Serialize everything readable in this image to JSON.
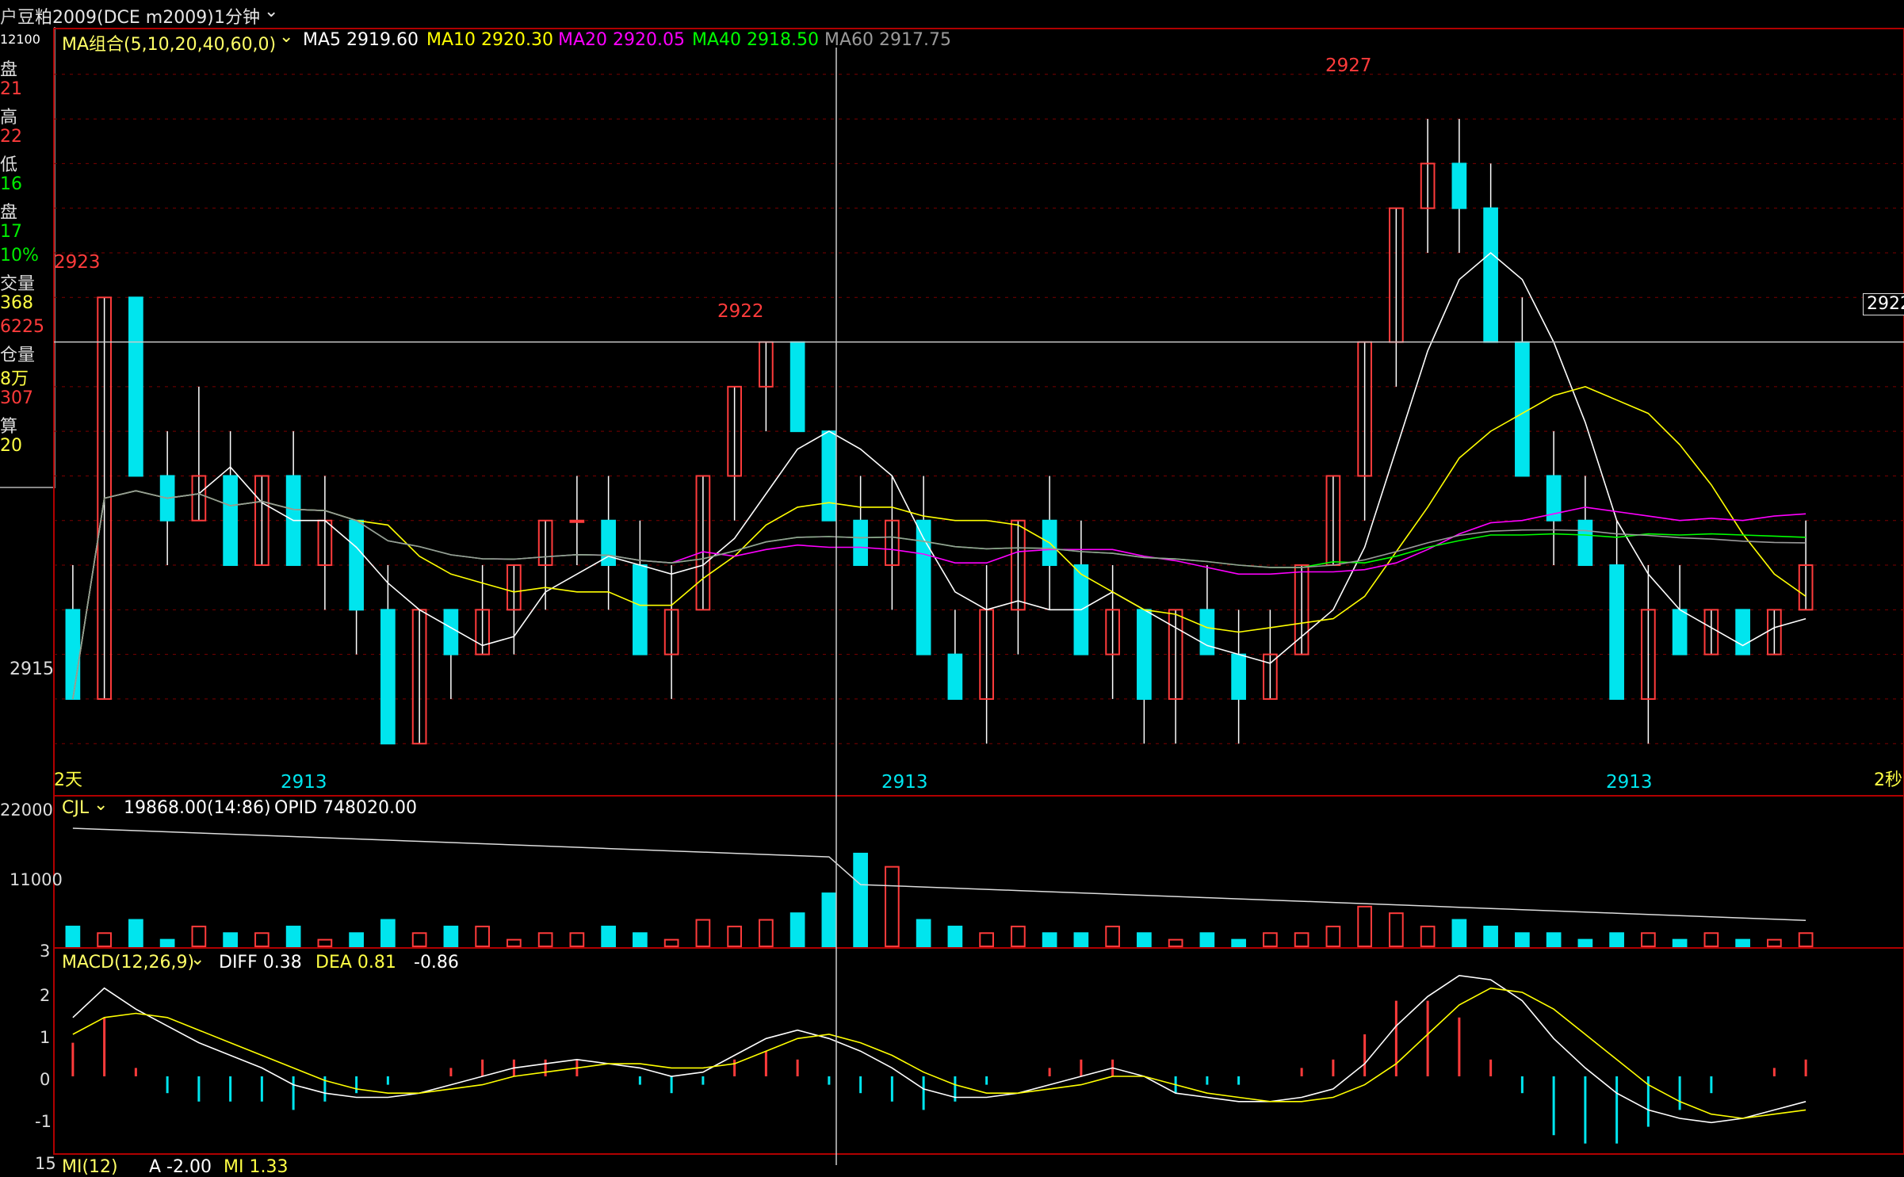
{
  "title_bar": {
    "instrument": "豆粕2009(DCE m2009)",
    "period": "1分钟",
    "dropdown_icon": "chevron-down-icon"
  },
  "left_panel": [
    {
      "text": "12100",
      "color": "#ffffff"
    },
    {
      "text": "盘",
      "color": "#dddddd"
    },
    {
      "text": "21",
      "color": "#ff3b3b"
    },
    {
      "text": "高",
      "color": "#dddddd"
    },
    {
      "text": "22",
      "color": "#ff3b3b"
    },
    {
      "text": "低",
      "color": "#dddddd"
    },
    {
      "text": "16",
      "color": "#00ee00"
    },
    {
      "text": "盘",
      "color": "#dddddd"
    },
    {
      "text": "17",
      "color": "#00ee00"
    },
    {
      "text": "10%",
      "color": "#00ee00"
    },
    {
      "text": "交量",
      "color": "#dddddd"
    },
    {
      "text": "368",
      "color": "#ffff44"
    },
    {
      "text": "6225",
      "color": "#ff3b3b"
    },
    {
      "text": "仓量",
      "color": "#dddddd"
    },
    {
      "text": "8万",
      "color": "#ffff44"
    },
    {
      "text": "307",
      "color": "#ff3b3b"
    },
    {
      "text": "算",
      "color": "#dddddd"
    },
    {
      "text": "20",
      "color": "#ffff44"
    }
  ],
  "ma_legend": {
    "name": "MA组合(5,10,20,40,60,0)",
    "items": [
      {
        "label": "MA5 2919.60",
        "color": "#ffffff"
      },
      {
        "label": "MA10 2920.30",
        "color": "#ffff00"
      },
      {
        "label": "MA20 2920.05",
        "color": "#ff00ff"
      },
      {
        "label": "MA40 2918.50",
        "color": "#00ff00"
      },
      {
        "label": "MA60 2917.75",
        "color": "#9a9a9a"
      }
    ]
  },
  "price_labels": {
    "right_cursor_price": "2922",
    "axis_2915": "2915",
    "marker_2923": "2923",
    "marker_2922": "2922",
    "marker_2927": "2927",
    "low_markers": [
      "2913",
      "2913",
      "2913"
    ],
    "left_corner": "2天",
    "right_corner": "2秒"
  },
  "volume_panel": {
    "name": "CJL",
    "value": "19868.00(14:86)",
    "opid": "OPID 748020.00",
    "axis": [
      "22000",
      "11000",
      "3"
    ]
  },
  "macd_panel": {
    "name": "MACD(12,26,9)",
    "diff": "DIFF 0.38",
    "dea": "DEA 0.81",
    "macd": "-0.86",
    "axis": [
      "2",
      "1",
      "0",
      "-1"
    ]
  },
  "bottom_panel": {
    "axis_top": "15",
    "name": "MI(12)",
    "a": "A -2.00",
    "mi": "MI 1.33"
  },
  "colors": {
    "up": "#ff3b3b",
    "down": "#00e5ee",
    "panel_border": "#b00000",
    "grid": "#7a0000"
  },
  "chart_data": {
    "type": "candlestick",
    "price_range": [
      2912.4,
      2928.6
    ],
    "candles_ohlc": [
      [
        2916,
        2917,
        2914,
        2914
      ],
      [
        2914,
        2923,
        2914,
        2923
      ],
      [
        2923,
        2923,
        2919,
        2919
      ],
      [
        2919,
        2920,
        2917,
        2918
      ],
      [
        2918,
        2921,
        2918,
        2919
      ],
      [
        2919,
        2920,
        2917,
        2917
      ],
      [
        2917,
        2919,
        2917,
        2919
      ],
      [
        2919,
        2920,
        2917,
        2917
      ],
      [
        2917,
        2919,
        2916,
        2918
      ],
      [
        2918,
        2918,
        2915,
        2916
      ],
      [
        2916,
        2917,
        2913,
        2913
      ],
      [
        2913,
        2916,
        2913,
        2916
      ],
      [
        2916,
        2916,
        2914,
        2915
      ],
      [
        2915,
        2917,
        2915,
        2916
      ],
      [
        2916,
        2917,
        2915,
        2917
      ],
      [
        2917,
        2918,
        2916,
        2918
      ],
      [
        2918,
        2919,
        2917,
        2918
      ],
      [
        2918,
        2919,
        2916,
        2917
      ],
      [
        2917,
        2918,
        2915,
        2915
      ],
      [
        2915,
        2917,
        2914,
        2916
      ],
      [
        2916,
        2919,
        2916,
        2919
      ],
      [
        2919,
        2921,
        2918,
        2921
      ],
      [
        2921,
        2922,
        2920,
        2922
      ],
      [
        2922,
        2922,
        2920,
        2920
      ],
      [
        2920,
        2920,
        2918,
        2918
      ],
      [
        2918,
        2919,
        2917,
        2917
      ],
      [
        2917,
        2919,
        2916,
        2918
      ],
      [
        2918,
        2919,
        2915,
        2915
      ],
      [
        2915,
        2916,
        2914,
        2914
      ],
      [
        2914,
        2917,
        2913,
        2916
      ],
      [
        2916,
        2918,
        2915,
        2918
      ],
      [
        2918,
        2919,
        2916,
        2917
      ],
      [
        2917,
        2918,
        2915,
        2915
      ],
      [
        2915,
        2917,
        2914,
        2916
      ],
      [
        2916,
        2916,
        2913,
        2914
      ],
      [
        2914,
        2916,
        2913,
        2916
      ],
      [
        2916,
        2917,
        2915,
        2915
      ],
      [
        2915,
        2916,
        2913,
        2914
      ],
      [
        2914,
        2916,
        2914,
        2915
      ],
      [
        2915,
        2917,
        2915,
        2917
      ],
      [
        2917,
        2919,
        2917,
        2919
      ],
      [
        2919,
        2922,
        2918,
        2922
      ],
      [
        2922,
        2925,
        2921,
        2925
      ],
      [
        2925,
        2927,
        2924,
        2926
      ],
      [
        2926,
        2927,
        2924,
        2925
      ],
      [
        2925,
        2926,
        2922,
        2922
      ],
      [
        2922,
        2923,
        2919,
        2919
      ],
      [
        2919,
        2920,
        2917,
        2918
      ],
      [
        2918,
        2919,
        2917,
        2917
      ],
      [
        2917,
        2918,
        2914,
        2914
      ],
      [
        2914,
        2917,
        2913,
        2916
      ],
      [
        2916,
        2917,
        2915,
        2915
      ],
      [
        2915,
        2916,
        2915,
        2916
      ],
      [
        2916,
        2916,
        2915,
        2915
      ],
      [
        2915,
        2916,
        2915,
        2916
      ],
      [
        2916,
        2918,
        2916,
        2917
      ]
    ],
    "ma_series": [
      "MA5",
      "MA10",
      "MA20",
      "MA40",
      "MA60"
    ],
    "volume": [
      3,
      2,
      4,
      1,
      3,
      2,
      2,
      3,
      1,
      2,
      4,
      2,
      3,
      3,
      1,
      2,
      2,
      3,
      2,
      1,
      4,
      3,
      4,
      5,
      8,
      14,
      12,
      4,
      3,
      2,
      3,
      2,
      2,
      3,
      2,
      1,
      2,
      1,
      2,
      2,
      3,
      6,
      5,
      3,
      4,
      3,
      2,
      2,
      1,
      2,
      2,
      1,
      2,
      1,
      1,
      2
    ],
    "macd_diff": [
      1.4,
      2.1,
      1.6,
      1.2,
      0.8,
      0.5,
      0.2,
      -0.2,
      -0.4,
      -0.5,
      -0.5,
      -0.4,
      -0.2,
      0.0,
      0.2,
      0.3,
      0.4,
      0.3,
      0.2,
      0.0,
      0.1,
      0.5,
      0.9,
      1.1,
      0.9,
      0.6,
      0.2,
      -0.3,
      -0.5,
      -0.5,
      -0.4,
      -0.2,
      0.0,
      0.2,
      0.0,
      -0.4,
      -0.5,
      -0.6,
      -0.6,
      -0.5,
      -0.3,
      0.3,
      1.2,
      1.9,
      2.4,
      2.3,
      1.8,
      0.9,
      0.2,
      -0.4,
      -0.8,
      -1.0,
      -1.1,
      -1.0,
      -0.8,
      -0.6
    ],
    "macd_dea": [
      1.0,
      1.4,
      1.5,
      1.4,
      1.1,
      0.8,
      0.5,
      0.2,
      -0.1,
      -0.3,
      -0.4,
      -0.4,
      -0.3,
      -0.2,
      0.0,
      0.1,
      0.2,
      0.3,
      0.3,
      0.2,
      0.2,
      0.3,
      0.6,
      0.9,
      1.0,
      0.8,
      0.5,
      0.1,
      -0.2,
      -0.4,
      -0.4,
      -0.3,
      -0.2,
      0.0,
      0.0,
      -0.2,
      -0.4,
      -0.5,
      -0.6,
      -0.6,
      -0.5,
      -0.2,
      0.3,
      1.0,
      1.7,
      2.1,
      2.0,
      1.6,
      1.0,
      0.4,
      -0.2,
      -0.6,
      -0.9,
      -1.0,
      -0.9,
      -0.8
    ]
  }
}
